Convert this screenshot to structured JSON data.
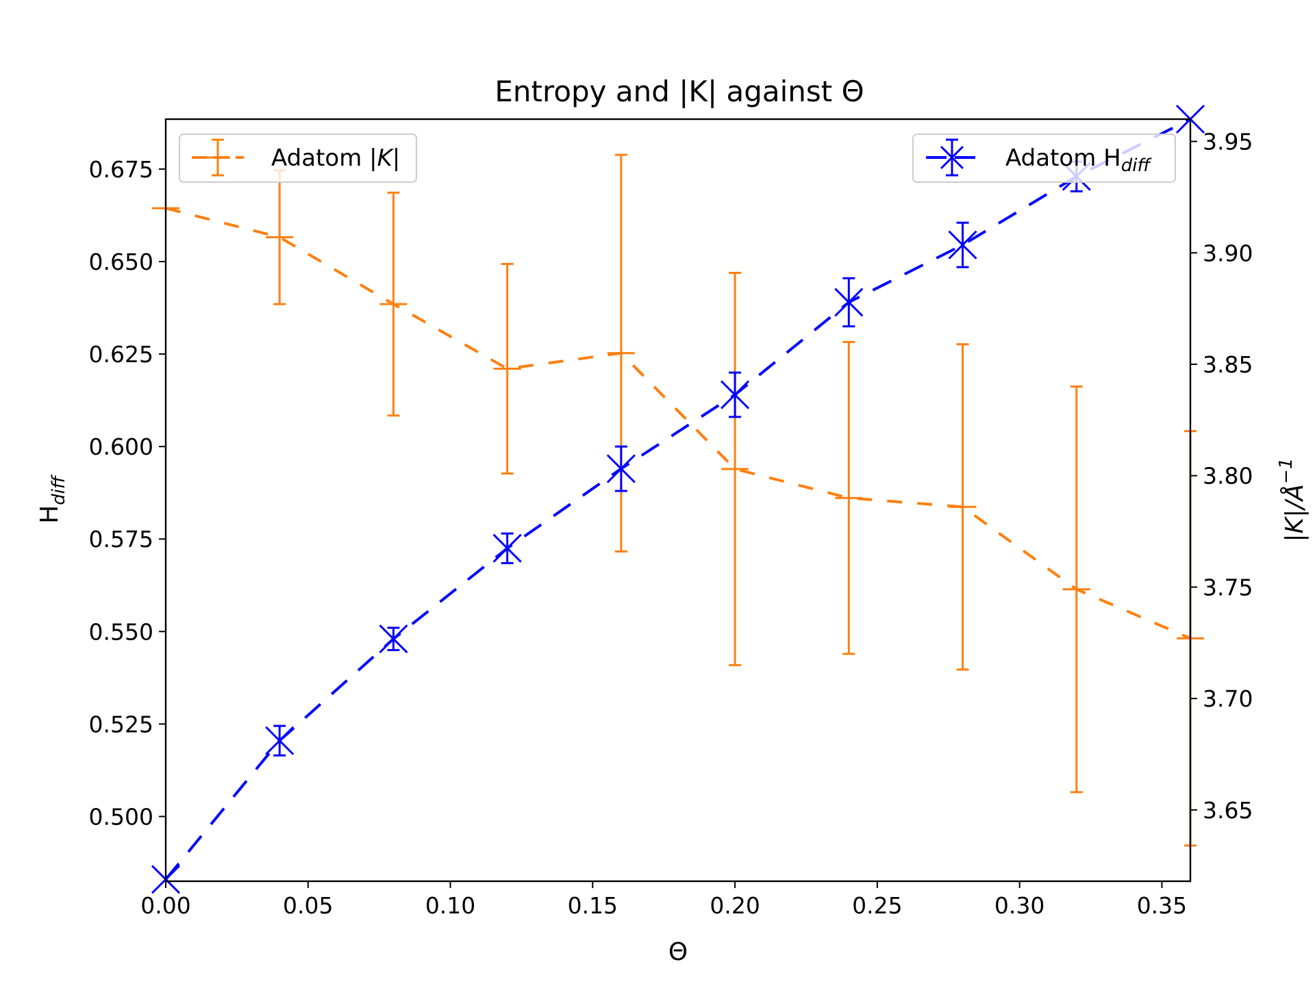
{
  "chart_data": {
    "type": "line",
    "title": "Entropy and |K| against Θ",
    "xlabel": "Θ",
    "xlim": [
      0.0,
      0.36
    ],
    "x_ticks": [
      "0.00",
      "0.05",
      "0.10",
      "0.15",
      "0.20",
      "0.25",
      "0.30",
      "0.35"
    ],
    "left_axis": {
      "label_main": "H",
      "label_sub": "diff",
      "ylim": [
        0.4825,
        0.6885
      ],
      "ticks": [
        "0.500",
        "0.525",
        "0.550",
        "0.575",
        "0.600",
        "0.625",
        "0.650",
        "0.675"
      ]
    },
    "right_axis": {
      "label_text": "|K|/Å",
      "label_sup": "−1",
      "ylim": [
        3.618,
        3.96
      ],
      "ticks": [
        "3.65",
        "3.70",
        "3.75",
        "3.80",
        "3.85",
        "3.90",
        "3.95"
      ]
    },
    "series": [
      {
        "name": "Adatom |K|",
        "legend_main": "Adatom |",
        "legend_italic": "K",
        "legend_tail": "|",
        "axis": "right",
        "color": "#ff7f0e",
        "marker": "+",
        "x": [
          0.0,
          0.04,
          0.08,
          0.12,
          0.16,
          0.2,
          0.24,
          0.28,
          0.32,
          0.36
        ],
        "y": [
          3.92,
          3.907,
          3.877,
          3.848,
          3.855,
          3.803,
          3.79,
          3.786,
          3.749,
          3.727
        ],
        "err": [
          0.0,
          0.03,
          0.05,
          0.047,
          0.089,
          0.088,
          0.07,
          0.073,
          0.091,
          0.093
        ]
      },
      {
        "name": "Adatom H_diff",
        "legend_main": "Adatom H",
        "legend_sub": "diff",
        "axis": "left",
        "color": "#0000ff",
        "marker": "x",
        "x": [
          0.0,
          0.04,
          0.08,
          0.12,
          0.16,
          0.2,
          0.24,
          0.28,
          0.32,
          0.36
        ],
        "y": [
          0.483,
          0.5205,
          0.548,
          0.5725,
          0.594,
          0.614,
          0.639,
          0.6545,
          0.673,
          0.6885
        ],
        "err": [
          0.0,
          0.004,
          0.003,
          0.004,
          0.006,
          0.006,
          0.0065,
          0.006,
          0.004,
          0.0
        ]
      }
    ]
  }
}
